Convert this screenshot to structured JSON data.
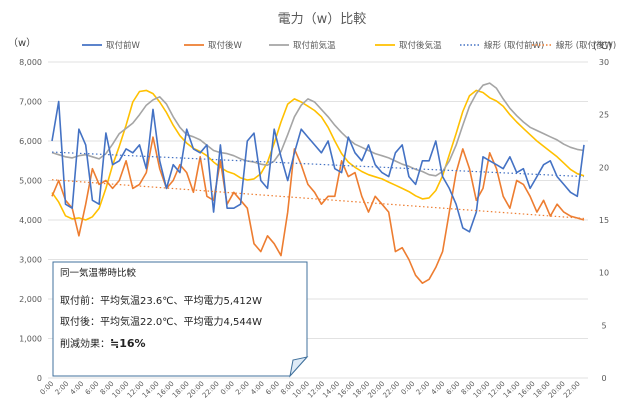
{
  "chart_data": {
    "type": "line",
    "title": "電力（w）比較",
    "y_left_unit": "（w）",
    "y_right_unit": "(℃)",
    "y_left_range": [
      0,
      8000
    ],
    "y_left_ticks": [
      "0",
      "1,000",
      "2,000",
      "3,000",
      "4,000",
      "5,000",
      "6,000",
      "7,000",
      "8,000"
    ],
    "y_right_range": [
      0,
      30
    ],
    "y_right_ticks": [
      "0",
      "5",
      "10",
      "15",
      "20",
      "25",
      "30"
    ],
    "x_tick_labels": [
      "0:00",
      "2:00",
      "4:00",
      "6:00",
      "8:00",
      "10:00",
      "12:00",
      "14:00",
      "16:00",
      "18:00",
      "20:00",
      "22:00",
      "0:00",
      "2:00",
      "4:00",
      "6:00",
      "8:00",
      "10:00",
      "12:00",
      "14:00",
      "16:00",
      "18:00",
      "20:00",
      "22:00",
      "0:00",
      "2:00",
      "4:00",
      "6:00",
      "8:00",
      "10:00",
      "12:00",
      "14:00",
      "16:00",
      "18:00",
      "20:00",
      "22:00"
    ],
    "grid": "horizontal",
    "legend_position": "top",
    "series": [
      {
        "name": "取付前W",
        "axis": "left",
        "color": "#4472C4",
        "style": "solid",
        "values": [
          6000,
          7000,
          4400,
          4300,
          6300,
          5900,
          4500,
          4400,
          6200,
          5400,
          5500,
          5800,
          5700,
          5900,
          5300,
          6800,
          5500,
          4800,
          5400,
          5200,
          6300,
          5800,
          5700,
          5900,
          4200,
          5900,
          4300,
          4300,
          4400,
          6000,
          6200,
          5000,
          4800,
          6300,
          5600,
          5000,
          5700,
          6300,
          6100,
          5900,
          5700,
          6000,
          5300,
          5200,
          6100,
          5700,
          5500,
          5900,
          5400,
          5200,
          5100,
          5700,
          5900,
          5100,
          4900,
          5500,
          5500,
          6000,
          5100,
          4800,
          4400,
          3800,
          3700,
          4200,
          5600,
          5500,
          5400,
          5300,
          5600,
          5200,
          5300,
          4800,
          5100,
          5400,
          5500,
          5100,
          4900,
          4700,
          4600,
          5900
        ]
      },
      {
        "name": "取付後W",
        "axis": "left",
        "color": "#ED7D31",
        "style": "solid",
        "values": [
          4600,
          5000,
          4500,
          4300,
          3600,
          4400,
          5300,
          4900,
          5000,
          4800,
          5000,
          5500,
          4800,
          4900,
          5200,
          6100,
          5300,
          4800,
          5000,
          5400,
          5200,
          4700,
          5600,
          4600,
          4500,
          5500,
          4400,
          4700,
          4500,
          4300,
          3400,
          3200,
          3600,
          3400,
          3100,
          4200,
          5800,
          5400,
          4900,
          4700,
          4400,
          4600,
          4600,
          5500,
          5100,
          5200,
          4600,
          4200,
          4600,
          4400,
          4200,
          3200,
          3300,
          3000,
          2600,
          2400,
          2500,
          2800,
          3200,
          4200,
          5200,
          5800,
          5300,
          4500,
          4800,
          5700,
          5300,
          4600,
          4300,
          5000,
          4900,
          4600,
          4200,
          4500,
          4100,
          4400,
          4200,
          4100,
          4050,
          4000
        ]
      },
      {
        "name": "取付前気温",
        "axis": "right",
        "color": "#A5A5A5",
        "style": "solid",
        "values": [
          21.4,
          21.2,
          21.0,
          20.9,
          21.1,
          21.2,
          21.0,
          20.8,
          21.3,
          22.2,
          23.2,
          23.7,
          24.2,
          25.0,
          25.9,
          26.4,
          26.7,
          26.0,
          24.8,
          23.8,
          23.1,
          22.9,
          22.6,
          22.1,
          21.6,
          21.4,
          21.3,
          21.1,
          20.8,
          20.6,
          20.5,
          20.3,
          20.2,
          20.6,
          21.5,
          23.1,
          24.8,
          25.9,
          26.5,
          26.2,
          25.5,
          24.8,
          24.0,
          23.3,
          22.7,
          22.2,
          21.9,
          21.6,
          21.3,
          21.1,
          20.9,
          20.6,
          20.3,
          20.1,
          19.8,
          19.6,
          19.3,
          19.2,
          19.6,
          20.6,
          22.1,
          24.0,
          25.8,
          27.0,
          27.8,
          28.0,
          27.5,
          26.5,
          25.6,
          24.9,
          24.3,
          23.8,
          23.5,
          23.2,
          22.9,
          22.6,
          22.2,
          21.9,
          21.7,
          21.6
        ]
      },
      {
        "name": "取付後気温",
        "axis": "right",
        "color": "#FFC000",
        "style": "solid",
        "values": [
          17.6,
          16.7,
          15.4,
          15.1,
          15.2,
          15.0,
          15.3,
          16.1,
          18.0,
          20.2,
          22.0,
          24.0,
          26.2,
          27.2,
          27.3,
          27.0,
          26.2,
          25.2,
          24.0,
          23.0,
          22.3,
          21.8,
          21.5,
          21.1,
          20.5,
          20.0,
          19.6,
          19.4,
          19.0,
          18.8,
          18.9,
          19.4,
          20.5,
          22.3,
          24.3,
          26.0,
          26.5,
          26.2,
          25.8,
          25.4,
          24.8,
          23.8,
          22.5,
          21.3,
          20.5,
          20.0,
          19.6,
          19.3,
          19.1,
          18.9,
          18.6,
          18.3,
          18.0,
          17.7,
          17.3,
          17.0,
          17.1,
          17.8,
          19.2,
          21.2,
          23.2,
          25.3,
          26.8,
          27.3,
          27.1,
          26.6,
          26.3,
          25.8,
          25.0,
          24.3,
          23.7,
          23.1,
          22.5,
          22.0,
          21.5,
          21.0,
          20.4,
          19.8,
          19.4,
          19.2
        ]
      },
      {
        "name": "線形 (取付前W)",
        "axis": "left",
        "color": "#4472C4",
        "style": "dotted",
        "trend": [
          5720,
          5100
        ]
      },
      {
        "name": "線形 (取付後W)",
        "axis": "left",
        "color": "#ED7D31",
        "style": "dotted",
        "trend": [
          5020,
          4040
        ]
      }
    ],
    "annotation": {
      "lines": [
        "同一気温帯時比較",
        "取付前：平均気温23.6℃、平均電力5,412W",
        "取付後：平均気温22.0℃、平均電力4,544W"
      ],
      "effect_prefix": "削減効果：",
      "effect_value": "≒16%"
    }
  }
}
